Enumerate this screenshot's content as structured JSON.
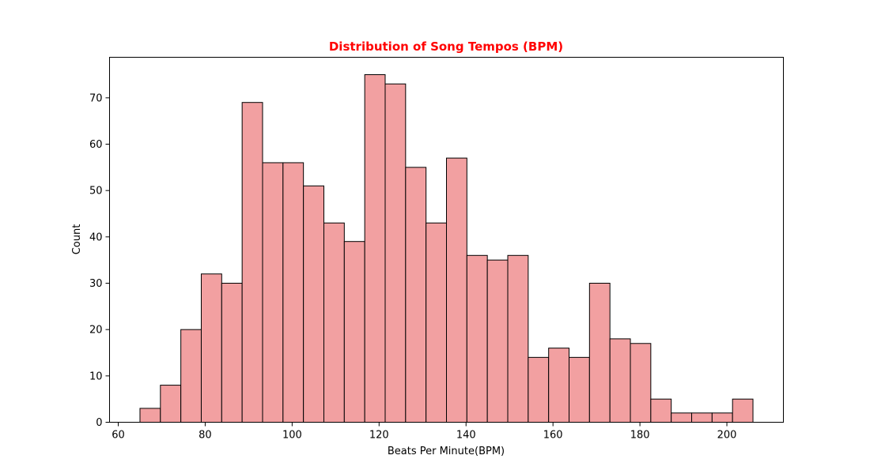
{
  "chart_data": {
    "type": "bar",
    "title": "Distribution of Song Tempos (BPM)",
    "title_color": "#ff0000",
    "xlabel": "Beats Per Minute(BPM)",
    "ylabel": "Count",
    "bar_color": "#f2a0a1",
    "bar_edge_color": "#000000",
    "xlim": [
      58.0,
      213.0
    ],
    "ylim": [
      0,
      78.75
    ],
    "xticks": [
      60,
      80,
      100,
      120,
      140,
      160,
      180,
      200
    ],
    "yticks": [
      0,
      10,
      20,
      30,
      40,
      50,
      60,
      70
    ],
    "grid": false,
    "bins": [
      {
        "start": 65.0,
        "end": 69.7,
        "count": 3
      },
      {
        "start": 69.7,
        "end": 74.4,
        "count": 8
      },
      {
        "start": 74.4,
        "end": 79.1,
        "count": 20
      },
      {
        "start": 79.1,
        "end": 83.8,
        "count": 32
      },
      {
        "start": 83.8,
        "end": 88.5,
        "count": 30
      },
      {
        "start": 88.5,
        "end": 93.2,
        "count": 69
      },
      {
        "start": 93.2,
        "end": 97.9,
        "count": 56
      },
      {
        "start": 97.9,
        "end": 102.6,
        "count": 56
      },
      {
        "start": 102.6,
        "end": 107.3,
        "count": 51
      },
      {
        "start": 107.3,
        "end": 112.0,
        "count": 43
      },
      {
        "start": 112.0,
        "end": 116.7,
        "count": 39
      },
      {
        "start": 116.7,
        "end": 121.4,
        "count": 75
      },
      {
        "start": 121.4,
        "end": 126.1,
        "count": 73
      },
      {
        "start": 126.1,
        "end": 130.8,
        "count": 55
      },
      {
        "start": 130.8,
        "end": 135.5,
        "count": 43
      },
      {
        "start": 135.5,
        "end": 140.2,
        "count": 57
      },
      {
        "start": 140.2,
        "end": 144.9,
        "count": 36
      },
      {
        "start": 144.9,
        "end": 149.6,
        "count": 35
      },
      {
        "start": 149.6,
        "end": 154.3,
        "count": 36
      },
      {
        "start": 154.3,
        "end": 159.0,
        "count": 14
      },
      {
        "start": 159.0,
        "end": 163.7,
        "count": 16
      },
      {
        "start": 163.7,
        "end": 168.4,
        "count": 14
      },
      {
        "start": 168.4,
        "end": 173.1,
        "count": 30
      },
      {
        "start": 173.1,
        "end": 177.8,
        "count": 18
      },
      {
        "start": 177.8,
        "end": 182.5,
        "count": 17
      },
      {
        "start": 182.5,
        "end": 187.2,
        "count": 5
      },
      {
        "start": 187.2,
        "end": 191.9,
        "count": 2
      },
      {
        "start": 191.9,
        "end": 196.6,
        "count": 2
      },
      {
        "start": 196.6,
        "end": 201.3,
        "count": 2
      },
      {
        "start": 201.3,
        "end": 206.0,
        "count": 5
      }
    ]
  }
}
